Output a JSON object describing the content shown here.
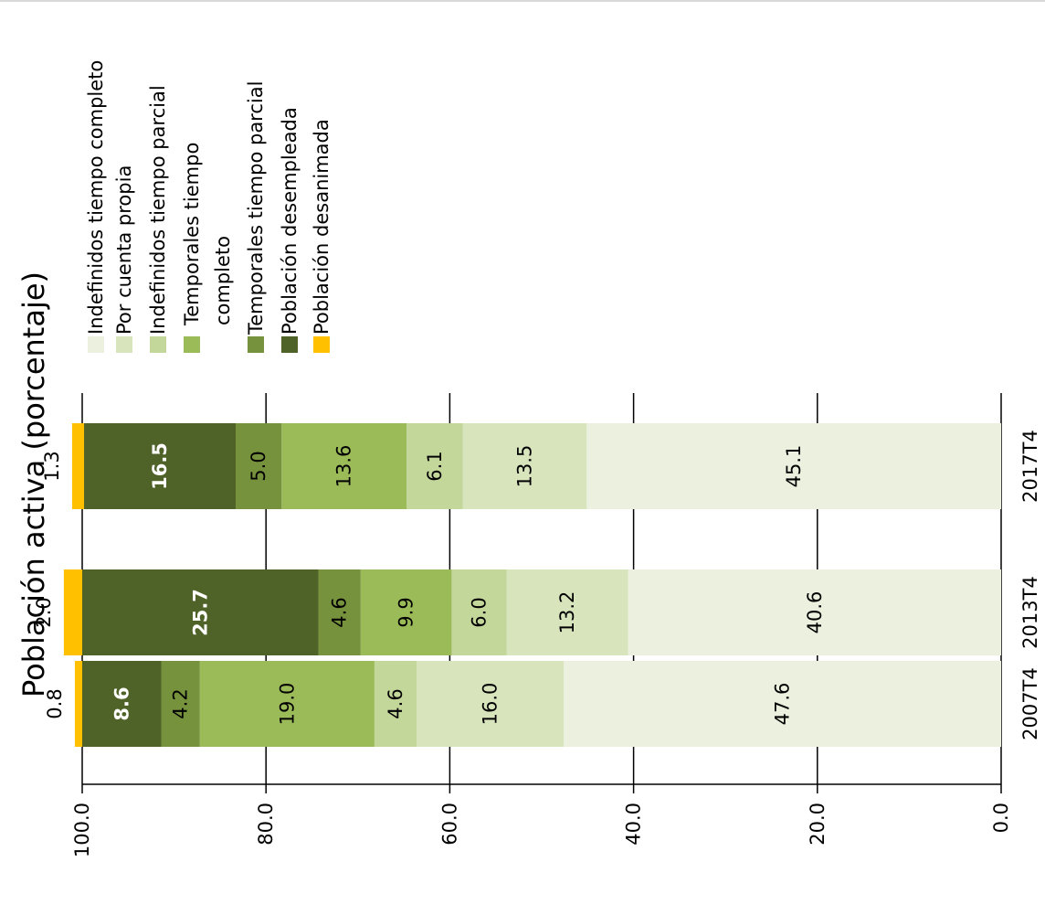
{
  "chart_data": {
    "type": "bar",
    "orientation": "horizontal",
    "stacked": true,
    "title": "Población activa (porcentaje)",
    "categories": [
      "2007T4",
      "2013T4",
      "2017T4"
    ],
    "series": [
      {
        "name": "Indefinidos tiempo completo",
        "color": "#ebf1de",
        "values": [
          47.6,
          40.6,
          45.1
        ]
      },
      {
        "name": "Por cuenta propia",
        "color": "#d8e4bc",
        "values": [
          16.0,
          13.2,
          13.5
        ]
      },
      {
        "name": "Indefinidos tiempo parcial",
        "color": "#c4d79b",
        "values": [
          4.6,
          6.0,
          6.1
        ]
      },
      {
        "name": "Temporales tiempo completo",
        "color": "#9bbb59",
        "values": [
          19.0,
          9.9,
          13.6
        ]
      },
      {
        "name": "Temporales tiempo parcial",
        "color": "#76923c",
        "values": [
          4.2,
          4.6,
          5.0
        ]
      },
      {
        "name": "Población desempleada",
        "color": "#4f6228",
        "values": [
          8.6,
          25.7,
          16.5
        ]
      },
      {
        "name": "Población desanimada",
        "color": "#ffc000",
        "values": [
          0.8,
          2.0,
          1.3
        ]
      }
    ],
    "value_labels": [
      [
        "47.6",
        "16.0",
        "4.6",
        "19.0",
        "4.2",
        "8.6",
        "0.8"
      ],
      [
        "40.6",
        "13.2",
        "6.0",
        "9.9",
        "4.6",
        "25.7",
        "2.0"
      ],
      [
        "45.1",
        "13.5",
        "6.1",
        "13.6",
        "5.0",
        "16.5",
        "1.3"
      ]
    ],
    "axis": {
      "range": [
        0,
        100
      ],
      "ticks": [
        "0.0",
        "20.0",
        "40.0",
        "60.0",
        "80.0",
        "100.0"
      ]
    },
    "grid": true,
    "legend_position": "top",
    "legend_lines": [
      [
        "Indefinidos tiempo completo"
      ],
      [
        "Por cuenta propia"
      ],
      [
        "Indefinidos tiempo parcial"
      ],
      [
        "Temporales tiempo",
        "completo"
      ],
      [
        "Temporales tiempo parcial"
      ],
      [
        "Población desempleada"
      ],
      [
        "Población desanimada"
      ]
    ]
  }
}
